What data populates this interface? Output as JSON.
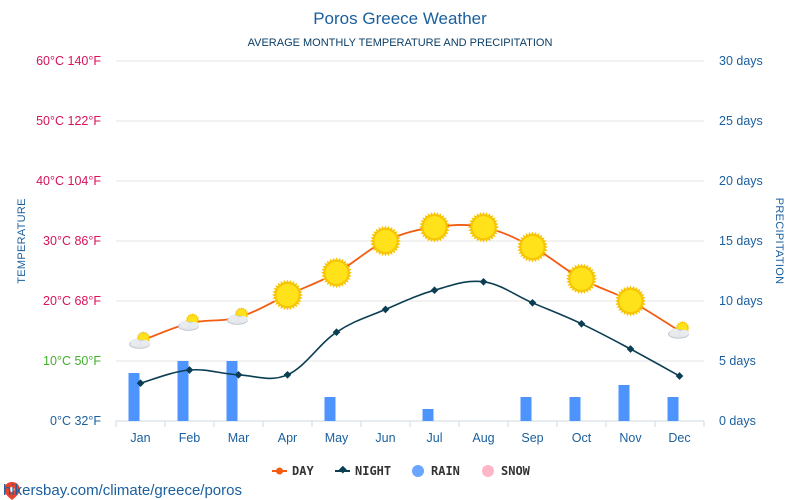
{
  "header": {
    "title": "Poros Greece Weather",
    "subtitle": "AVERAGE MONTHLY TEMPERATURE AND PRECIPITATION"
  },
  "colors": {
    "day": "#f25c13",
    "night": "#0b3e52",
    "rain": "#4d94ff",
    "snow": "#ffb6c8",
    "grid": "#e6e6e6",
    "hot": "#d8125b",
    "warm": "#43b02a",
    "cold": "#1a5f9e"
  },
  "chart_data": {
    "type": "line",
    "title": "Poros Greece Weather",
    "subtitle": "AVERAGE MONTHLY TEMPERATURE AND PRECIPITATION",
    "categories": [
      "Jan",
      "Feb",
      "Mar",
      "Apr",
      "May",
      "Jun",
      "Jul",
      "Aug",
      "Sep",
      "Oct",
      "Nov",
      "Dec"
    ],
    "y_left": {
      "label": "TEMPERATURE",
      "range_c": [
        0,
        60
      ],
      "ticks": [
        {
          "c": 0,
          "text": "0°C 32°F",
          "tone": "cold"
        },
        {
          "c": 10,
          "text": "10°C 50°F",
          "tone": "warm"
        },
        {
          "c": 20,
          "text": "20°C 68°F",
          "tone": "hot"
        },
        {
          "c": 30,
          "text": "30°C 86°F",
          "tone": "hot"
        },
        {
          "c": 40,
          "text": "40°C 104°F",
          "tone": "hot"
        },
        {
          "c": 50,
          "text": "50°C 122°F",
          "tone": "hot"
        },
        {
          "c": 60,
          "text": "60°C 140°F",
          "tone": "hot"
        }
      ]
    },
    "y_right": {
      "label": "PRECIPITATION",
      "range_days": [
        0,
        30
      ],
      "ticks": [
        {
          "v": 0,
          "text": "0 days"
        },
        {
          "v": 5,
          "text": "5 days"
        },
        {
          "v": 10,
          "text": "10 days"
        },
        {
          "v": 15,
          "text": "15 days"
        },
        {
          "v": 20,
          "text": "20 days"
        },
        {
          "v": 25,
          "text": "25 days"
        },
        {
          "v": 30,
          "text": "30 days"
        }
      ]
    },
    "series": [
      {
        "name": "DAY",
        "type": "line",
        "axis": "left",
        "values": [
          13.3,
          16.3,
          17.3,
          21,
          24.7,
          30,
          32.3,
          32.3,
          29,
          23.7,
          20,
          15
        ]
      },
      {
        "name": "NIGHT",
        "type": "line",
        "axis": "left",
        "values": [
          6.3,
          8.5,
          7.7,
          7.7,
          14.8,
          18.6,
          21.8,
          23.2,
          19.7,
          16.2,
          12,
          7.5
        ]
      },
      {
        "name": "RAIN",
        "type": "bar",
        "axis": "right",
        "values": [
          4,
          5,
          5,
          0,
          2,
          0,
          1,
          0,
          2,
          2,
          3,
          2
        ]
      },
      {
        "name": "SNOW",
        "type": "bar",
        "axis": "right",
        "values": [
          0,
          0,
          0,
          0,
          0,
          0,
          0,
          0,
          0,
          0,
          0,
          0
        ]
      }
    ],
    "weather_icons": [
      "partly-cloudy-icon",
      "partly-cloudy-icon",
      "partly-cloudy-icon",
      "sun-icon",
      "sun-icon",
      "sun-icon",
      "sun-icon",
      "sun-icon",
      "sun-icon",
      "sun-icon",
      "sun-icon",
      "partly-cloudy-icon"
    ],
    "legend": [
      "DAY",
      "NIGHT",
      "RAIN",
      "SNOW"
    ],
    "legend_position": "bottom-center",
    "grid": true
  },
  "footer": {
    "source": "hikersbay.com/climate/greece/poros",
    "source_icon": "map-pin-icon"
  }
}
